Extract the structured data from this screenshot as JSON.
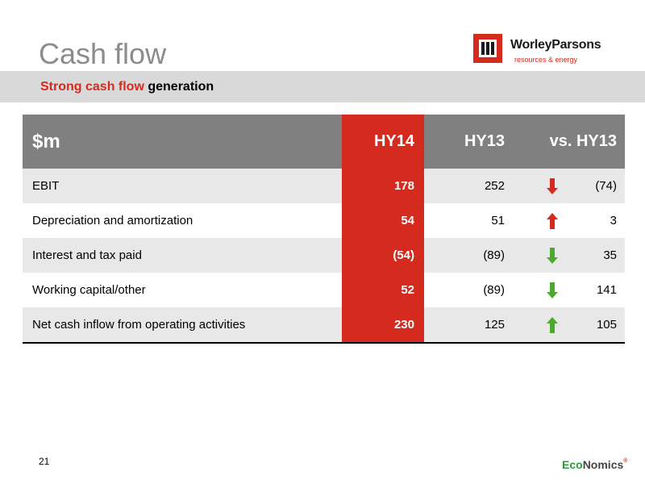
{
  "title": "Cash flow",
  "logo": {
    "name": "WorleyParsons",
    "tagline": "resources & energy"
  },
  "subtitle": {
    "accent": "Strong cash flow",
    "rest": " generation"
  },
  "table": {
    "headers": {
      "label": "$m",
      "hy14": "HY14",
      "hy13": "HY13",
      "vs": "vs. HY13"
    },
    "rows": [
      {
        "label": "EBIT",
        "hy14": "178",
        "hy13": "252",
        "arrow": "down",
        "arrow_color": "#d52b1e",
        "vs": "(74)"
      },
      {
        "label": "Depreciation and amortization",
        "hy14": "54",
        "hy13": "51",
        "arrow": "up",
        "arrow_color": "#d52b1e",
        "vs": "3"
      },
      {
        "label": "Interest and tax paid",
        "hy14": "(54)",
        "hy13": "(89)",
        "arrow": "down",
        "arrow_color": "#4ea72e",
        "vs": "35"
      },
      {
        "label": "Working capital/other",
        "hy14": "52",
        "hy13": "(89)",
        "arrow": "down",
        "arrow_color": "#4ea72e",
        "vs": "141"
      },
      {
        "label": "Net cash inflow from operating activities",
        "hy14": "230",
        "hy13": "125",
        "arrow": "up",
        "arrow_color": "#4ea72e",
        "vs": "105"
      }
    ]
  },
  "footer": {
    "page_number": "21",
    "brand_a": "Eco",
    "brand_b": "Nomics",
    "brand_mark": "®"
  },
  "colors": {
    "accent_red": "#d52b1e",
    "header_grey": "#808080",
    "band_grey": "#d9d9d9",
    "arrow_green": "#4ea72e"
  }
}
